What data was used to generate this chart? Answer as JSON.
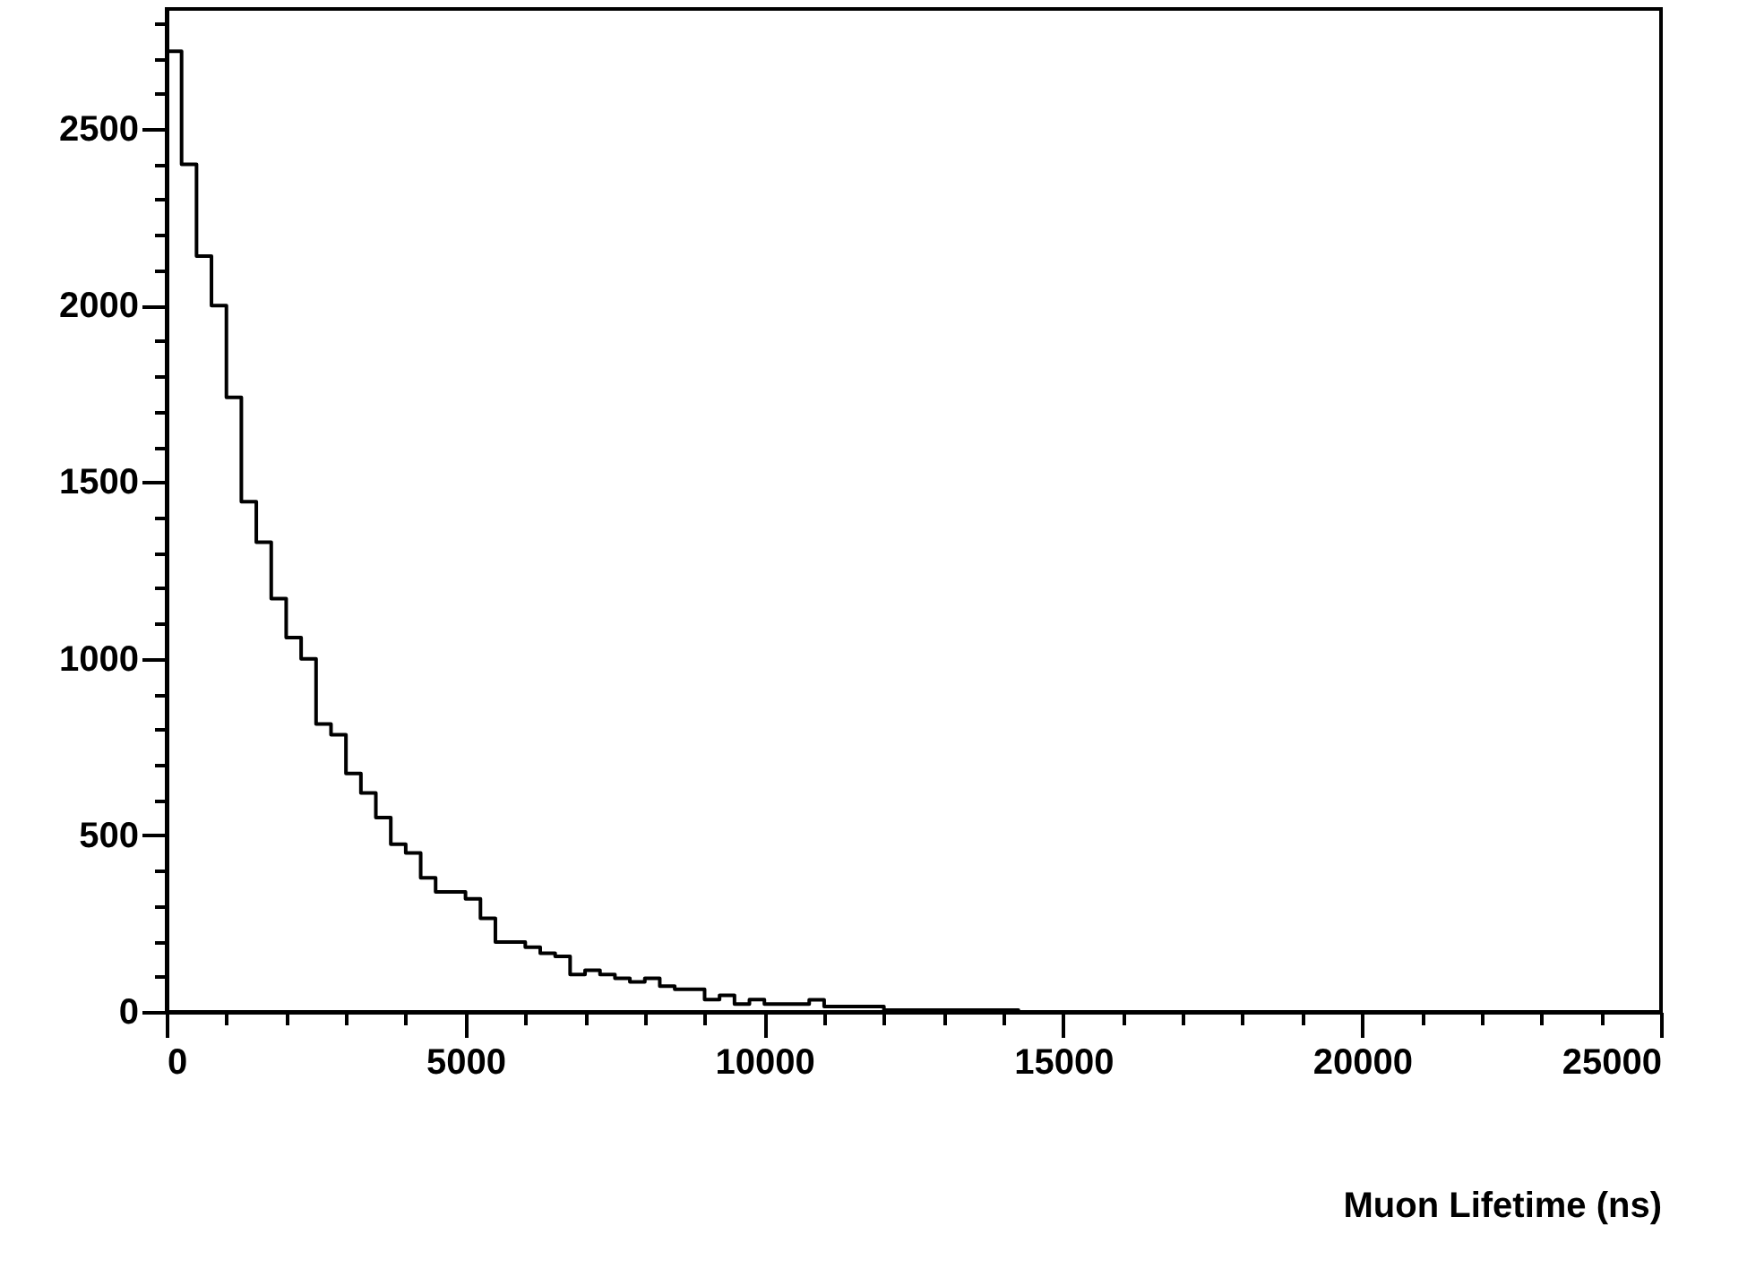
{
  "chart_data": {
    "type": "histogram",
    "xlabel": "Muon Lifetime (ns)",
    "bins": [
      0,
      250,
      500,
      750,
      1000,
      1250,
      1500,
      1750,
      2000,
      2250,
      2500,
      2750,
      3000,
      3250,
      3500,
      3750,
      4000,
      4250,
      4500,
      4750,
      5000,
      5250,
      5500,
      5750,
      6000,
      6250,
      6500,
      6750,
      7000,
      7250,
      7500,
      7750,
      8000,
      8250,
      8500,
      8750,
      9000,
      9250,
      9500,
      9750,
      10000,
      10250,
      10500,
      10750,
      11000,
      11250,
      11500,
      11750,
      12000,
      12250,
      12500,
      12750,
      13000,
      13250,
      13500,
      13750,
      14000,
      14250,
      14500,
      14750,
      15000,
      15250,
      15500,
      15750,
      16000,
      16250,
      16500,
      16750,
      17000,
      17250,
      17500,
      17750,
      18000,
      18250,
      18500,
      18750,
      19000,
      19250,
      19500,
      19750,
      20000,
      20250,
      20500,
      20750,
      21000,
      21250,
      21500,
      21750,
      22000,
      22250,
      22500,
      22750,
      23000,
      23250,
      23500,
      23750,
      24000,
      24250,
      24500,
      24750,
      25000
    ],
    "values": [
      2720,
      2400,
      2140,
      2000,
      1740,
      1445,
      1330,
      1170,
      1060,
      1000,
      815,
      785,
      675,
      620,
      550,
      475,
      450,
      380,
      340,
      340,
      320,
      265,
      198,
      198,
      183,
      166,
      157,
      106,
      118,
      106,
      95,
      85,
      95,
      73,
      64,
      64,
      35,
      47,
      22,
      35,
      22,
      22,
      22,
      34,
      15,
      15,
      15,
      15,
      5,
      5,
      5,
      5,
      5,
      5,
      5,
      5,
      5,
      0,
      0,
      0,
      0,
      0,
      0,
      0,
      0,
      0,
      0,
      0,
      0,
      0,
      0,
      0,
      0,
      0,
      0,
      0,
      0,
      0,
      0,
      0,
      0,
      0,
      0,
      0,
      0,
      0,
      0,
      0,
      0,
      0,
      0,
      0,
      0,
      0,
      0,
      0,
      0,
      0,
      0,
      0
    ],
    "color": "#000000",
    "xlim": [
      0,
      25000
    ],
    "ylim": [
      0,
      2840
    ],
    "xticks": [
      0,
      {
        "value": 1000,
        "label": null
      },
      {
        "value": 2000,
        "label": null
      },
      {
        "value": 3000,
        "label": null
      },
      {
        "value": 4000,
        "label": null
      },
      5000,
      {
        "value": 6000,
        "label": null
      },
      {
        "value": 7000,
        "label": null
      },
      {
        "value": 8000,
        "label": null
      },
      {
        "value": 9000,
        "label": null
      },
      10000,
      {
        "value": 11000,
        "label": null
      },
      {
        "value": 12000,
        "label": null
      },
      {
        "value": 13000,
        "label": null
      },
      {
        "value": 14000,
        "label": null
      },
      15000,
      {
        "value": 16000,
        "label": null
      },
      {
        "value": 17000,
        "label": null
      },
      {
        "value": 18000,
        "label": null
      },
      {
        "value": 19000,
        "label": null
      },
      20000,
      {
        "value": 21000,
        "label": null
      },
      {
        "value": 22000,
        "label": null
      },
      {
        "value": 23000,
        "label": null
      },
      {
        "value": 24000,
        "label": null
      },
      25000
    ],
    "yticks": [
      0,
      {
        "value": 100,
        "label": null
      },
      {
        "value": 200,
        "label": null
      },
      {
        "value": 300,
        "label": null
      },
      {
        "value": 400,
        "label": null
      },
      500,
      {
        "value": 600,
        "label": null
      },
      {
        "value": 700,
        "label": null
      },
      {
        "value": 800,
        "label": null
      },
      {
        "value": 900,
        "label": null
      },
      1000,
      {
        "value": 1100,
        "label": null
      },
      {
        "value": 1200,
        "label": null
      },
      {
        "value": 1300,
        "label": null
      },
      {
        "value": 1400,
        "label": null
      },
      1500,
      {
        "value": 1600,
        "label": null
      },
      {
        "value": 1700,
        "label": null
      },
      {
        "value": 1800,
        "label": null
      },
      {
        "value": 1900,
        "label": null
      },
      2000,
      {
        "value": 2100,
        "label": null
      },
      {
        "value": 2200,
        "label": null
      },
      {
        "value": 2300,
        "label": null
      },
      {
        "value": 2400,
        "label": null
      },
      2500,
      {
        "value": 2600,
        "label": null
      },
      {
        "value": 2700,
        "label": null
      },
      {
        "value": 2800,
        "label": null
      }
    ],
    "grid": false
  }
}
